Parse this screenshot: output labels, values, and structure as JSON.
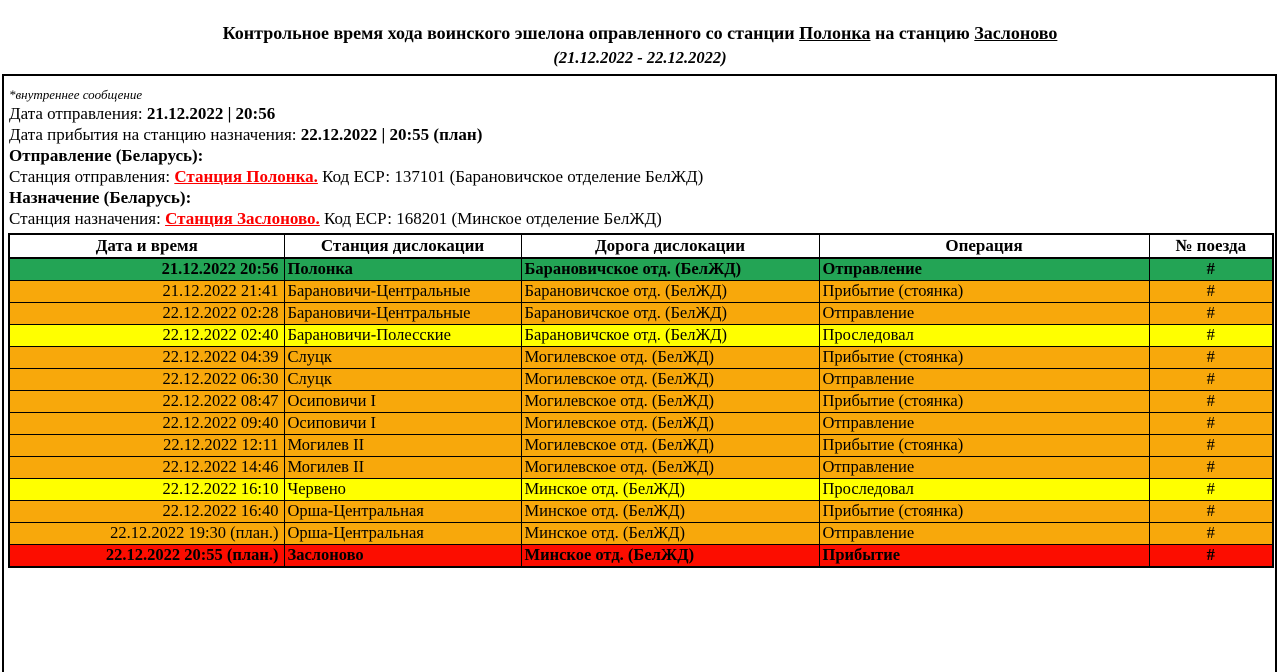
{
  "title": {
    "part1": "Контрольное время хода воинского эшелона оправленного со станции ",
    "station_from": "Полонка",
    "part2": "  на станцию ",
    "station_to": "Заслоново",
    "subtitle": "(21.12.2022 - 22.12.2022)"
  },
  "info": {
    "note": "*внутреннее сообщение",
    "departure_label": "Дата отправления: ",
    "departure_value": "21.12.2022 | 20:56",
    "arrival_label": "Дата прибытия на станцию назначения: ",
    "arrival_value": "22.12.2022 | 20:55 (план)",
    "origin_heading": "Отправление (Беларусь):",
    "origin_label": "Станция отправления: ",
    "origin_station": "Станция Полонка.",
    "origin_rest": " Код ЕСР: 137101 (Барановичское отделение БелЖД)",
    "dest_heading": "Назначение (Беларусь):",
    "dest_label": "Станция назначения: ",
    "dest_station": "Станция Заслоново.",
    "dest_rest": " Код ЕСР: 168201 (Минское отделение БелЖД)"
  },
  "colors": {
    "green": "#23a455",
    "orange": "#f8a80b",
    "yellow": "#ffff00",
    "red": "#fc0d00"
  },
  "table": {
    "headers": [
      "Дата и время",
      "Станция дислокации",
      "Дорога дислокации",
      "Операция",
      "№ поезда"
    ],
    "rows": [
      {
        "datetime": "21.12.2022 20:56",
        "station": "Полонка",
        "road": "Барановичское отд. (БелЖД)",
        "operation": "Отправление",
        "train": "#",
        "color": "green",
        "bold": true
      },
      {
        "datetime": "21.12.2022 21:41",
        "station": "Барановичи-Центральные",
        "road": "Барановичское отд. (БелЖД)",
        "operation": "Прибытие (стоянка)",
        "train": "#",
        "color": "orange",
        "bold": false
      },
      {
        "datetime": "22.12.2022 02:28",
        "station": "Барановичи-Центральные",
        "road": "Барановичское отд. (БелЖД)",
        "operation": "Отправление",
        "train": "#",
        "color": "orange",
        "bold": false
      },
      {
        "datetime": "22.12.2022 02:40",
        "station": "Барановичи-Полесские",
        "road": "Барановичское отд. (БелЖД)",
        "operation": "Проследовал",
        "train": "#",
        "color": "yellow",
        "bold": false
      },
      {
        "datetime": "22.12.2022 04:39",
        "station": "Слуцк",
        "road": "Могилевское отд. (БелЖД)",
        "operation": "Прибытие (стоянка)",
        "train": "#",
        "color": "orange",
        "bold": false
      },
      {
        "datetime": "22.12.2022 06:30",
        "station": "Слуцк",
        "road": "Могилевское отд. (БелЖД)",
        "operation": "Отправление",
        "train": "#",
        "color": "orange",
        "bold": false
      },
      {
        "datetime": "22.12.2022 08:47",
        "station": "Осиповичи I",
        "road": "Могилевское отд. (БелЖД)",
        "operation": "Прибытие (стоянка)",
        "train": "#",
        "color": "orange",
        "bold": false
      },
      {
        "datetime": "22.12.2022 09:40",
        "station": "Осиповичи I",
        "road": "Могилевское отд. (БелЖД)",
        "operation": "Отправление",
        "train": "#",
        "color": "orange",
        "bold": false
      },
      {
        "datetime": "22.12.2022 12:11",
        "station": "Могилев II",
        "road": "Могилевское отд. (БелЖД)",
        "operation": "Прибытие (стоянка)",
        "train": "#",
        "color": "orange",
        "bold": false
      },
      {
        "datetime": "22.12.2022 14:46",
        "station": "Могилев II",
        "road": "Могилевское отд. (БелЖД)",
        "operation": "Отправление",
        "train": "#",
        "color": "orange",
        "bold": false
      },
      {
        "datetime": "22.12.2022 16:10",
        "station": "Червено",
        "road": "Минское отд. (БелЖД)",
        "operation": "Проследовал",
        "train": "#",
        "color": "yellow",
        "bold": false
      },
      {
        "datetime": "22.12.2022 16:40",
        "station": "Орша-Центральная",
        "road": "Минское отд. (БелЖД)",
        "operation": "Прибытие (стоянка)",
        "train": "#",
        "color": "orange",
        "bold": false
      },
      {
        "datetime": "22.12.2022 19:30 (план.)",
        "station": "Орша-Центральная",
        "road": "Минское отд. (БелЖД)",
        "operation": "Отправление",
        "train": "#",
        "color": "orange",
        "bold": false
      },
      {
        "datetime": "22.12.2022 20:55 (план.)",
        "station": "Заслоново",
        "road": "Минское отд. (БелЖД)",
        "operation": "Прибытие",
        "train": "#",
        "color": "red",
        "bold": true
      }
    ]
  }
}
